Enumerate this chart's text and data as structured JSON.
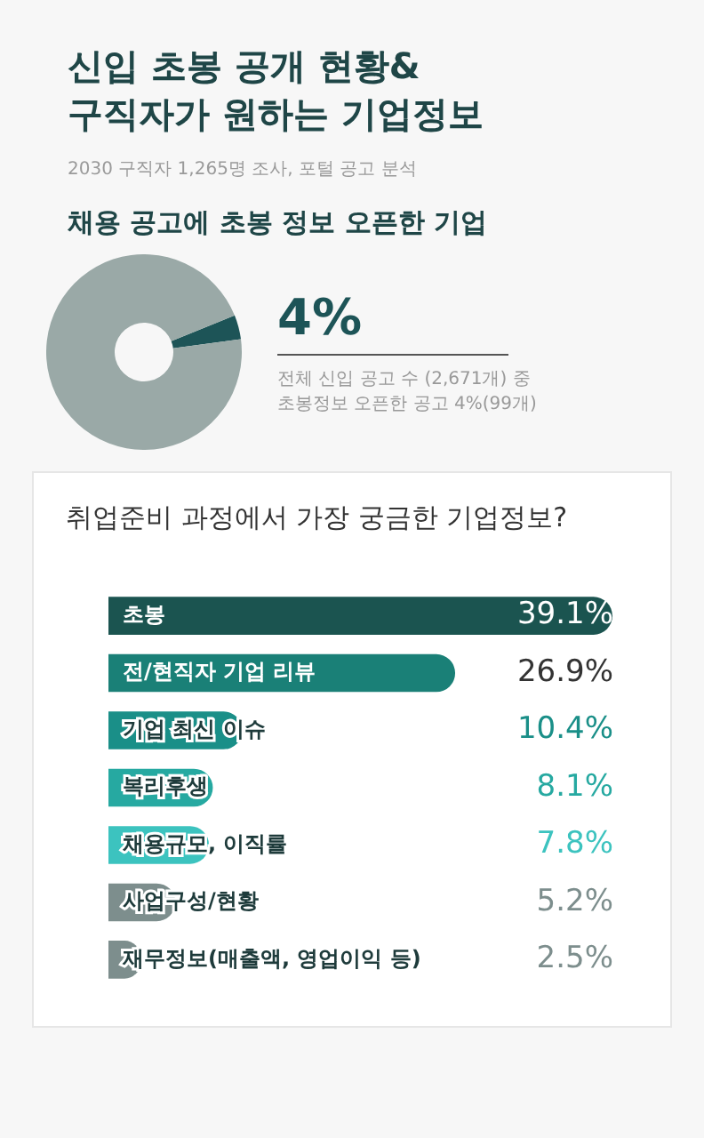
{
  "chart_data": [
    {
      "type": "donut",
      "title": "신입 초봉 공개 현황&\n구직자가 원하는 기업정보",
      "subtitle": "2030 구직자 1,265명 조사, 포털 공고 분석",
      "annotations": [
        "채용 공고에 초봉 정보 오픈한 기업",
        "전체 신입 공고 수 (2,671개) 중",
        "초봉정보 오픈한 공고 4%(99개)"
      ],
      "categories": [
        null,
        null
      ],
      "values": [
        4,
        96
      ],
      "colors": [
        "#1d5457",
        "#9aa9a7"
      ],
      "value_labels": [
        "4%",
        null
      ],
      "legend": false
    },
    {
      "type": "bar",
      "orientation": "horizontal",
      "title": "취업준비 과정에서 가장 궁금한 기업정보?",
      "categories": [
        "초봉",
        "전/현직자 기업 리뷰",
        "기업 최신 이슈",
        "복리후생",
        "채용규모, 이직률",
        "사업구성/현황",
        "재무정보(매출액, 영업이익 등)"
      ],
      "values": [
        39.1,
        26.9,
        10.4,
        8.1,
        7.8,
        5.2,
        2.5
      ],
      "colors": [
        "#1b5450",
        "#1a8077",
        "#1a8f88",
        "#26a9a1",
        "#3cc3bf",
        "#7d8e8d",
        "#7d8e8d"
      ],
      "value_labels": [
        "39.1%",
        "26.9%",
        "10.4%",
        "8.1%",
        "7.8%",
        "5.2%",
        "2.5%"
      ],
      "legend": false,
      "grid": false
    }
  ]
}
